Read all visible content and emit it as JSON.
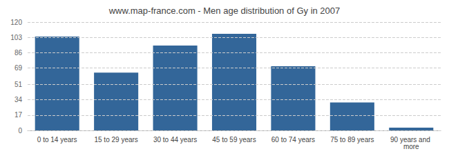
{
  "chart_data": {
    "type": "bar",
    "title": "www.map-france.com - Men age distribution of Gy in 2007",
    "categories": [
      "0 to 14 years",
      "15 to 29 years",
      "30 to 44 years",
      "45 to 59 years",
      "60 to 74 years",
      "75 to 89 years",
      "90 years and more"
    ],
    "values": [
      104,
      64,
      94,
      107,
      71,
      31,
      3
    ],
    "color": "#336699",
    "ylim": [
      0,
      120
    ],
    "yticks": [
      0,
      17,
      34,
      51,
      69,
      86,
      103,
      120
    ],
    "grid": true
  }
}
